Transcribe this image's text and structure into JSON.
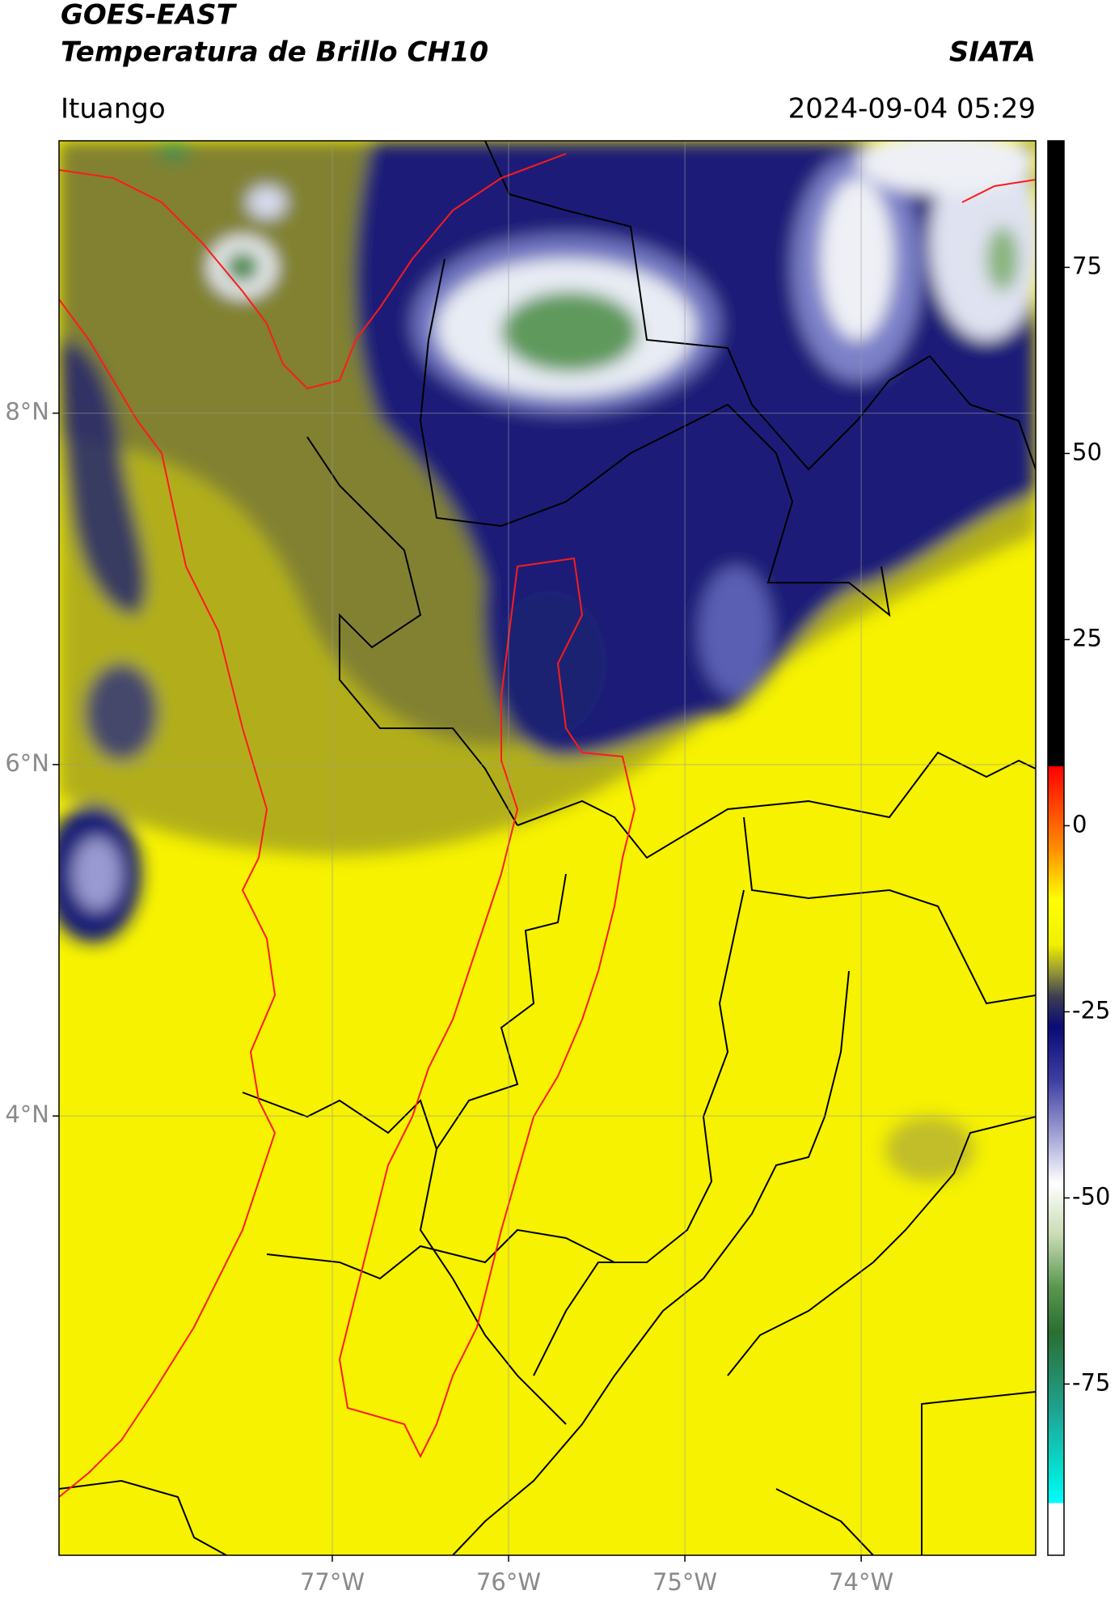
{
  "header": {
    "title": "GOES-EAST",
    "subtitle": "Temperatura de Brillo CH10",
    "source": "SIATA",
    "location": "Ituango",
    "datetime": "2024-09-04 05:29"
  },
  "map": {
    "lonlim": [
      -78.55,
      -73.01
    ],
    "latlim": [
      1.5,
      9.55
    ],
    "xticks": [
      {
        "value": -77,
        "label": "77°W"
      },
      {
        "value": -76,
        "label": "76°W"
      },
      {
        "value": -75,
        "label": "75°W"
      },
      {
        "value": -74,
        "label": "74°W"
      }
    ],
    "yticks": [
      {
        "value": 4,
        "label": "4°N"
      },
      {
        "value": 6,
        "label": "6°N"
      },
      {
        "value": 8,
        "label": "8°N"
      }
    ],
    "grid": true
  },
  "colorbar": {
    "lim": [
      -98,
      92
    ],
    "ticks": [
      -75,
      -50,
      -25,
      0,
      25,
      50,
      75
    ],
    "colormap": [
      {
        "value": 92,
        "color": "#000000"
      },
      {
        "value": 8,
        "color": "#000000"
      },
      {
        "value": 8,
        "color": "#ff0000"
      },
      {
        "value": -3,
        "color": "#ff8c00"
      },
      {
        "value": -10,
        "color": "#ffff00"
      },
      {
        "value": -16,
        "color": "#f0f000"
      },
      {
        "value": -20,
        "color": "#8c8c3c"
      },
      {
        "value": -23,
        "color": "#3c3c50"
      },
      {
        "value": -27,
        "color": "#0a0a78"
      },
      {
        "value": -34,
        "color": "#3c3ca0"
      },
      {
        "value": -41,
        "color": "#9a9ad2"
      },
      {
        "value": -48,
        "color": "#ffffff"
      },
      {
        "value": -55,
        "color": "#c8dcb4"
      },
      {
        "value": -62,
        "color": "#5a9650"
      },
      {
        "value": -68,
        "color": "#2a6e32"
      },
      {
        "value": -78,
        "color": "#20a08c"
      },
      {
        "value": -89,
        "color": "#00f0e6"
      },
      {
        "value": -91,
        "color": "#00ffff"
      },
      {
        "value": -91,
        "color": "#ffffff"
      },
      {
        "value": -98,
        "color": "#ffffff"
      }
    ]
  }
}
